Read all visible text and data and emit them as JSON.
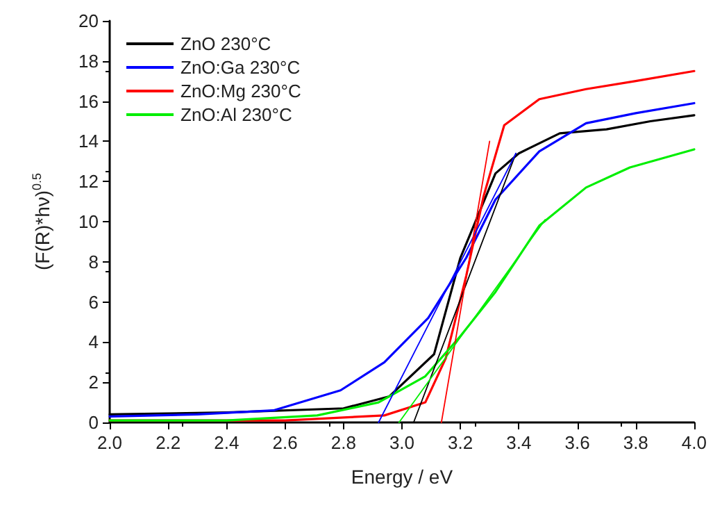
{
  "chart_data": {
    "type": "line",
    "xlabel": "Energy / eV",
    "ylabel": "(F(R)*hν)$^{0.5}$",
    "xlim": [
      2.0,
      4.0
    ],
    "xticks": [
      {
        "value": 2,
        "label": "2.0"
      },
      {
        "value": 2.2,
        "label": "2.2"
      },
      {
        "value": 2.4,
        "label": "2.4"
      },
      {
        "value": 2.6,
        "label": "2.6"
      },
      {
        "value": 2.8,
        "label": "2.8"
      },
      {
        "value": 3,
        "label": "3.0"
      },
      {
        "value": 3.2,
        "label": "3.2"
      },
      {
        "value": 3.4,
        "label": "3.4"
      },
      {
        "value": 3.6,
        "label": "3.6"
      },
      {
        "value": 3.8,
        "label": "3.8"
      },
      {
        "value": 4,
        "label": "4.0"
      }
    ],
    "ylim": [
      0,
      20
    ],
    "yticks": [
      0,
      2,
      4,
      6,
      8,
      10,
      12,
      14,
      16,
      18,
      20
    ],
    "grid": false,
    "legend": "top left",
    "marker": "none",
    "line_style": "solid",
    "series": [
      {
        "name": "ZnO 230°C",
        "color": "#000000",
        "x": [
          2.0,
          2.4,
          2.8,
          2.957,
          3.11,
          3.2,
          3.32,
          3.4,
          3.54,
          3.7,
          3.85,
          4.0
        ],
        "values": [
          0.4,
          0.5,
          0.7,
          1.3,
          3.4,
          8.2,
          12.4,
          13.4,
          14.4,
          14.6,
          15.0,
          15.3
        ]
      },
      {
        "name": "ZnO:Ga 230°C",
        "color": "#0000ff",
        "x": [
          2.0,
          2.3,
          2.56,
          2.79,
          2.94,
          3.09,
          3.22,
          3.32,
          3.47,
          3.63,
          3.8,
          4.0
        ],
        "values": [
          0.3,
          0.4,
          0.6,
          1.6,
          3.0,
          5.2,
          8.2,
          11.1,
          13.5,
          14.9,
          15.4,
          15.9
        ]
      },
      {
        "name": "ZnO:Mg 230°C",
        "color": "#ff0000",
        "x": [
          2.0,
          2.6,
          2.94,
          3.08,
          3.15,
          3.22,
          3.28,
          3.35,
          3.47,
          3.63,
          3.8,
          4.0
        ],
        "values": [
          0.1,
          0.1,
          0.35,
          1.0,
          3.2,
          7.3,
          11.3,
          14.8,
          16.1,
          16.6,
          17.0,
          17.5
        ]
      },
      {
        "name": "ZnO:Al 230°C",
        "color": "#00ee00",
        "x": [
          2.0,
          2.4,
          2.71,
          2.92,
          3.08,
          3.2,
          3.32,
          3.47,
          3.63,
          3.78,
          4.0
        ],
        "values": [
          0.1,
          0.1,
          0.35,
          1.0,
          2.3,
          4.3,
          6.5,
          9.8,
          11.7,
          12.7,
          13.6
        ]
      },
      {
        "type": "line",
        "color": "#000000",
        "x": [
          3.04,
          3.39
        ],
        "values": [
          0,
          13.4
        ]
      },
      {
        "type": "line",
        "color": "#0000ff",
        "x": [
          2.92,
          3.39
        ],
        "values": [
          0,
          13.4
        ]
      },
      {
        "type": "line",
        "color": "#ff0000",
        "x": [
          3.135,
          3.3
        ],
        "values": [
          0,
          14.0
        ]
      },
      {
        "type": "line",
        "color": "#00ee00",
        "x": [
          2.99,
          3.49
        ],
        "values": [
          0,
          10.1
        ]
      }
    ]
  }
}
